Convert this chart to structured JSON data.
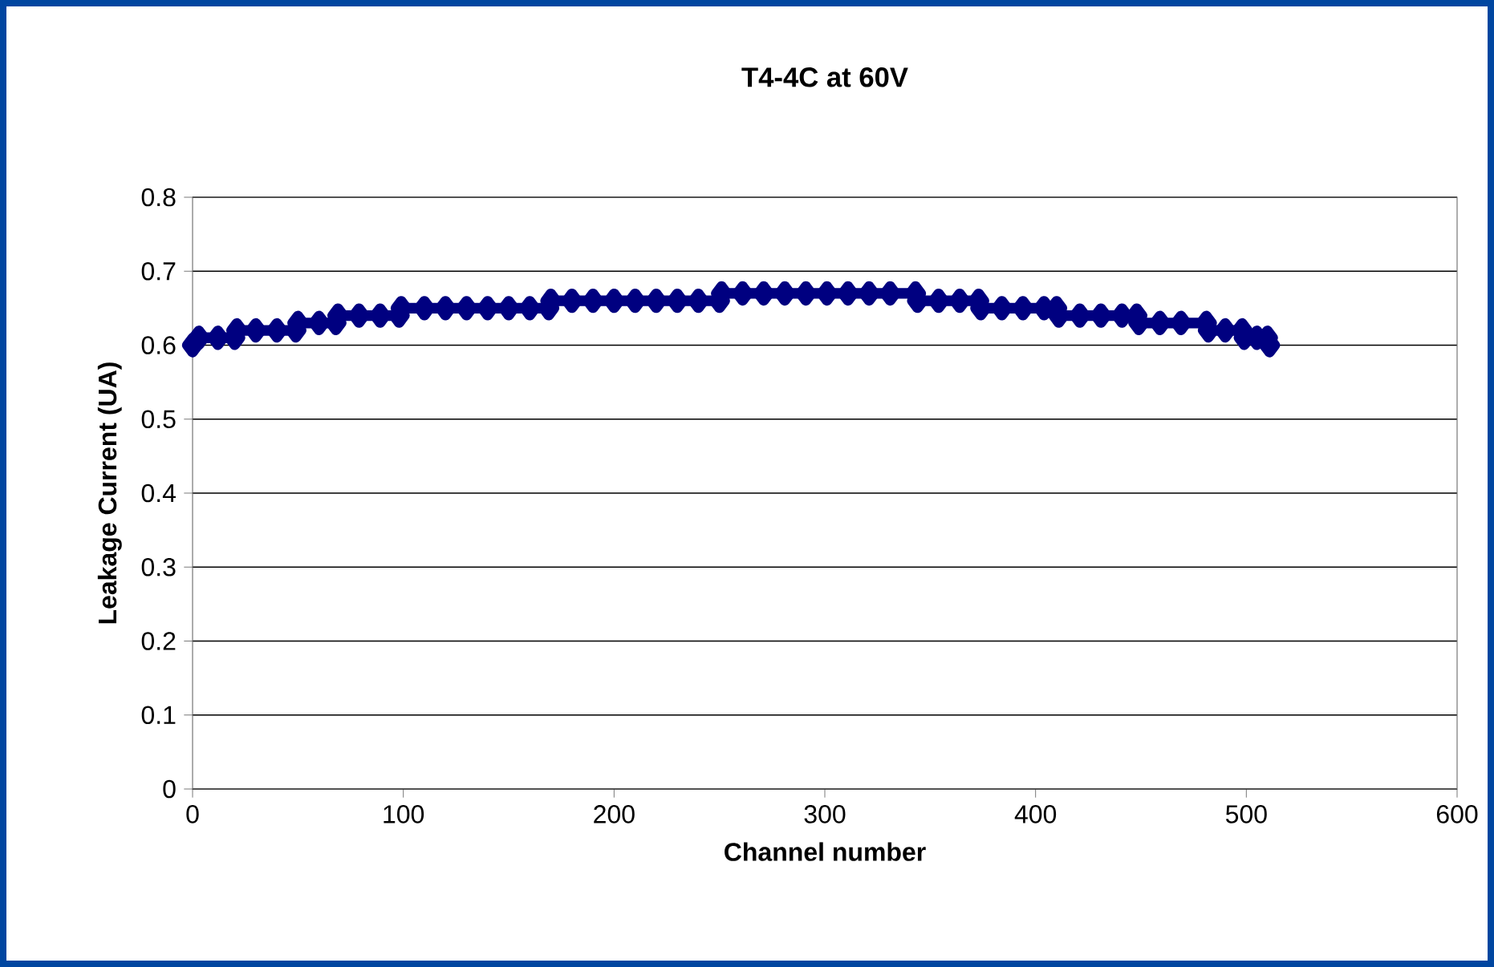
{
  "chart_data": {
    "type": "line",
    "title": "T4-4C at 60V",
    "xlabel": "Channel number",
    "ylabel": "Leakage Current (UA)",
    "x": [
      0,
      3,
      12,
      20,
      21,
      30,
      40,
      49,
      50,
      60,
      68,
      69,
      79,
      89,
      98,
      99,
      110,
      120,
      130,
      140,
      150,
      160,
      169,
      170,
      180,
      190,
      200,
      210,
      220,
      230,
      240,
      250,
      251,
      261,
      271,
      281,
      291,
      301,
      311,
      321,
      331,
      343,
      344,
      354,
      364,
      373,
      374,
      384,
      394,
      404,
      410,
      411,
      421,
      431,
      441,
      448,
      449,
      459,
      469,
      481,
      482,
      490,
      498,
      499,
      505,
      510,
      511
    ],
    "series": [
      {
        "color": "#000080",
        "values": [
          0.6,
          0.61,
          0.61,
          0.61,
          0.62,
          0.62,
          0.62,
          0.62,
          0.63,
          0.63,
          0.63,
          0.64,
          0.64,
          0.64,
          0.64,
          0.65,
          0.65,
          0.65,
          0.65,
          0.65,
          0.65,
          0.65,
          0.65,
          0.66,
          0.66,
          0.66,
          0.66,
          0.66,
          0.66,
          0.66,
          0.66,
          0.66,
          0.67,
          0.67,
          0.67,
          0.67,
          0.67,
          0.67,
          0.67,
          0.67,
          0.67,
          0.67,
          0.66,
          0.66,
          0.66,
          0.66,
          0.65,
          0.65,
          0.65,
          0.65,
          0.65,
          0.64,
          0.64,
          0.64,
          0.64,
          0.64,
          0.63,
          0.63,
          0.63,
          0.63,
          0.62,
          0.62,
          0.62,
          0.61,
          0.61,
          0.61,
          0.6
        ]
      }
    ],
    "xlim": [
      0,
      600
    ],
    "ylim": [
      0,
      0.8
    ],
    "xticks": [
      0,
      100,
      200,
      300,
      400,
      500,
      600
    ],
    "yticks": [
      0,
      0.1,
      0.2,
      0.3,
      0.4,
      0.5,
      0.6,
      0.7,
      0.8
    ],
    "grid": "y",
    "marker": "diamond",
    "line_style": "solid"
  }
}
